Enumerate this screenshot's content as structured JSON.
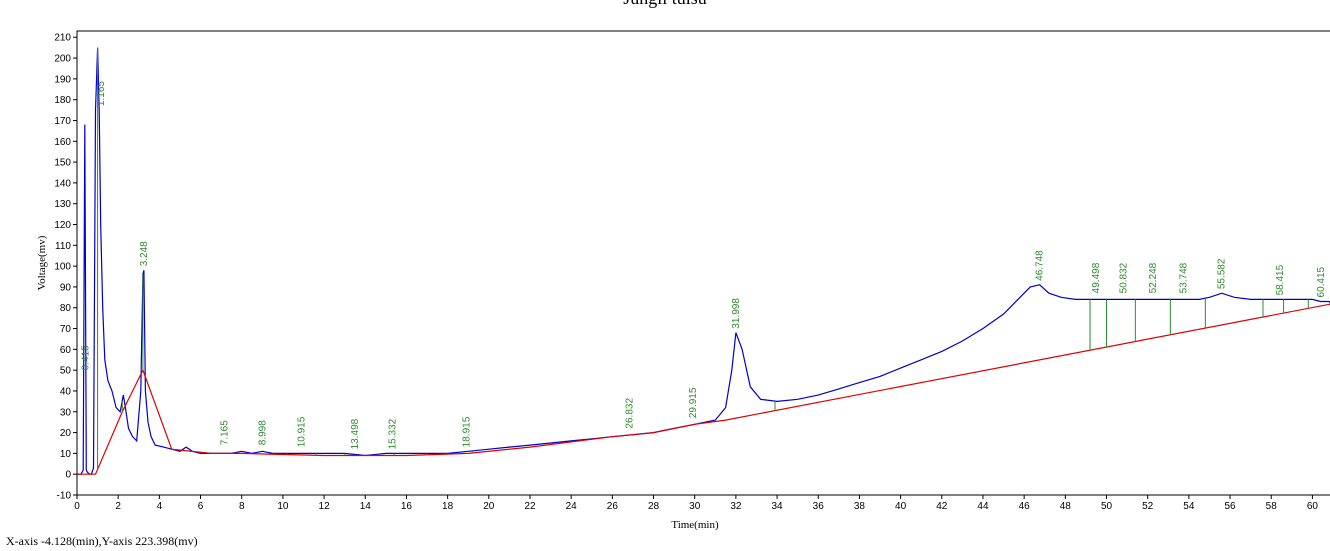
{
  "chart_data": {
    "type": "line",
    "title": "Jungli tulsu",
    "xlabel": "Time(min)",
    "ylabel": "Voltage(mv)",
    "xlim": [
      0,
      61
    ],
    "ylim": [
      -10,
      213
    ],
    "x_ticks": [
      0,
      2,
      4,
      6,
      8,
      10,
      12,
      14,
      16,
      18,
      20,
      22,
      24,
      26,
      28,
      30,
      32,
      34,
      36,
      38,
      40,
      42,
      44,
      46,
      48,
      50,
      52,
      54,
      56,
      58,
      60
    ],
    "y_ticks": [
      -10,
      0,
      10,
      20,
      30,
      40,
      50,
      60,
      70,
      80,
      90,
      100,
      110,
      120,
      130,
      140,
      150,
      160,
      170,
      180,
      190,
      200,
      210
    ],
    "grid": false,
    "series": [
      {
        "color": "#0000cc",
        "x": [
          0,
          0.2,
          0.3,
          0.38,
          0.45,
          0.5,
          0.6,
          0.7,
          0.8,
          0.9,
          1.0,
          1.08,
          1.15,
          1.25,
          1.35,
          1.5,
          1.7,
          1.9,
          2.1,
          2.25,
          2.35,
          2.5,
          2.7,
          2.9,
          3.1,
          3.2,
          3.25,
          3.32,
          3.45,
          3.6,
          3.8,
          4.2,
          4.6,
          5.0,
          5.3,
          5.6,
          6.0,
          6.5,
          7.0,
          7.5,
          8.0,
          8.5,
          9.0,
          9.5,
          10.0,
          11.0,
          12.0,
          13.0,
          14.0,
          15.0,
          16.0,
          17.0,
          18.0,
          19.0,
          20.0,
          21.0,
          22.0,
          23.0,
          24.0,
          25.0,
          26.0,
          27.0,
          28.0,
          29.0,
          30.0,
          31.0,
          31.5,
          31.8,
          32.0,
          32.3,
          32.7,
          33.2,
          34.0,
          35.0,
          36.0,
          37.0,
          38.0,
          39.0,
          40.0,
          41.0,
          42.0,
          43.0,
          44.0,
          45.0,
          45.8,
          46.3,
          46.75,
          47.2,
          47.8,
          48.5,
          49.5,
          50.0,
          50.8,
          51.5,
          52.2,
          53.0,
          53.7,
          54.5,
          55.0,
          55.6,
          56.2,
          57.0,
          58.0,
          59.0,
          60.0,
          60.4,
          60.8,
          61.0
        ],
        "y": [
          0,
          0,
          2,
          168,
          2,
          1,
          0,
          0,
          3,
          175,
          205,
          175,
          120,
          80,
          55,
          45,
          40,
          32,
          30,
          38,
          32,
          22,
          18,
          16,
          40,
          96,
          98,
          40,
          25,
          18,
          14,
          13,
          12,
          11,
          13,
          11,
          10,
          10,
          10,
          10,
          11,
          10,
          11,
          10,
          10,
          10,
          10,
          10,
          9,
          10,
          10,
          10,
          10,
          11,
          12,
          13,
          14,
          15,
          16,
          17,
          18,
          19,
          20,
          22,
          24,
          26,
          32,
          50,
          68,
          60,
          42,
          36,
          35,
          36,
          38,
          41,
          44,
          47,
          51,
          55,
          59,
          64,
          70,
          77,
          85,
          90,
          91,
          87,
          85,
          84,
          84,
          84,
          84,
          84,
          84,
          84,
          84,
          84,
          85,
          87,
          85,
          84,
          84,
          84,
          84,
          83,
          83,
          81
        ]
      },
      {
        "color": "#dd0000",
        "x": [
          0,
          0.9,
          2.2,
          3.2,
          4.6,
          6.5,
          8,
          12,
          16,
          19,
          22,
          26,
          28,
          30,
          31.5,
          61
        ],
        "y": [
          0,
          0,
          30,
          50,
          12,
          10,
          10,
          9,
          9,
          10,
          13,
          18,
          20,
          24,
          26,
          82
        ]
      }
    ],
    "annotations": [
      {
        "x": 0.415,
        "y": 48,
        "text": "0.415"
      },
      {
        "x": 1.165,
        "y": 175,
        "text": "1.165"
      },
      {
        "x": 3.248,
        "y": 98,
        "text": "3.248"
      },
      {
        "x": 7.165,
        "y": 12,
        "text": "7.165"
      },
      {
        "x": 8.998,
        "y": 12,
        "text": "8.998"
      },
      {
        "x": 10.915,
        "y": 11,
        "text": "10.915"
      },
      {
        "x": 13.498,
        "y": 10,
        "text": "13.498"
      },
      {
        "x": 15.332,
        "y": 10,
        "text": "15.332"
      },
      {
        "x": 18.915,
        "y": 11,
        "text": "18.915"
      },
      {
        "x": 26.832,
        "y": 20,
        "text": "26.832"
      },
      {
        "x": 29.915,
        "y": 25,
        "text": "29.915"
      },
      {
        "x": 31.998,
        "y": 68,
        "text": "31.998"
      },
      {
        "x": 46.748,
        "y": 91,
        "text": "46.748"
      },
      {
        "x": 49.498,
        "y": 85,
        "text": "49.498"
      },
      {
        "x": 50.832,
        "y": 85,
        "text": "50.832"
      },
      {
        "x": 52.248,
        "y": 85,
        "text": "52.248"
      },
      {
        "x": 53.748,
        "y": 85,
        "text": "53.748"
      },
      {
        "x": 55.582,
        "y": 87,
        "text": "55.582"
      },
      {
        "x": 58.415,
        "y": 84,
        "text": "58.415"
      },
      {
        "x": 60.415,
        "y": 83,
        "text": "60.415"
      }
    ],
    "dividers_x": [
      1.0,
      2.2,
      3.2,
      7.6,
      8.4,
      10.2,
      11.6,
      13.0,
      14.2,
      15.4,
      17.0,
      19.2,
      27.3,
      30.3,
      33.9,
      49.2,
      50.0,
      51.4,
      53.1,
      54.8,
      57.6,
      58.6,
      59.8
    ],
    "annotation_color": "#2e8b2e"
  },
  "status_text": "X-axis -4.128(min),Y-axis 223.398(mv)"
}
